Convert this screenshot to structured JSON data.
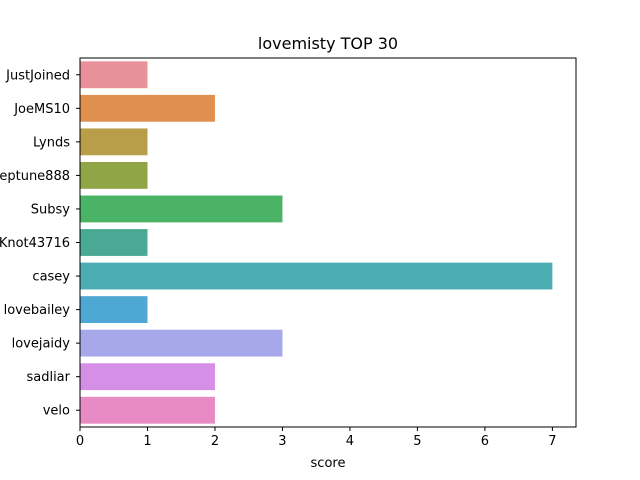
{
  "chart_data": {
    "type": "bar",
    "orientation": "horizontal",
    "title": "lovemisty TOP 30",
    "xlabel": "score",
    "ylabel": "",
    "xlim": [
      0,
      7.35
    ],
    "xticks": [
      "0",
      "1",
      "2",
      "3",
      "4",
      "5",
      "6",
      "7"
    ],
    "categories": [
      "JustJoined",
      "JoeMS10",
      "Lynds",
      "eptune888",
      "Subsy",
      "Knot43716",
      "casey",
      "lovebailey",
      "lovejaidy",
      "sadliar",
      "velo"
    ],
    "values": [
      1,
      2,
      1,
      1,
      3,
      1,
      7,
      1,
      3,
      2,
      2
    ],
    "colors": [
      "#e8919a",
      "#e0904e",
      "#b89e48",
      "#8fa546",
      "#4ab365",
      "#49a994",
      "#4caeb3",
      "#4fa7d4",
      "#a6a8ea",
      "#d68fe6",
      "#e88ac4"
    ],
    "grid": false,
    "legend": "none"
  }
}
